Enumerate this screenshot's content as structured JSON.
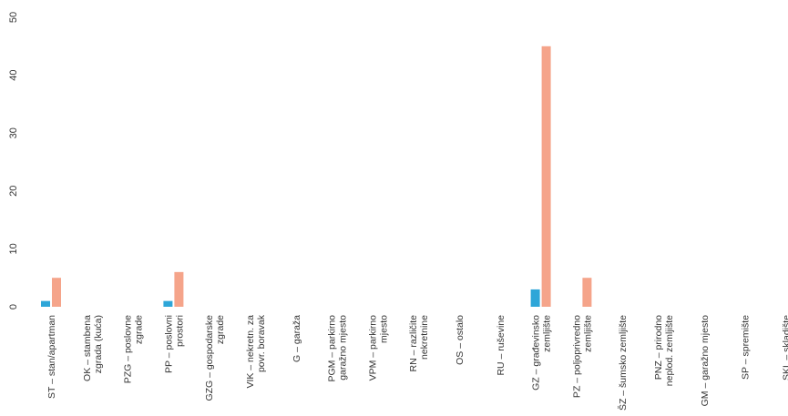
{
  "chart_data": {
    "type": "bar",
    "title": "",
    "xlabel": "",
    "ylabel": "",
    "ylim": [
      0,
      50
    ],
    "yticks": [
      0,
      10,
      20,
      30,
      40,
      50
    ],
    "grid": false,
    "categories": [
      [
        "ST – stan/apartman"
      ],
      [
        "OK – stambena",
        "zgrada (kuća)"
      ],
      [
        "PZG – poslovne",
        "zgrade"
      ],
      [
        "PP – poslovni",
        "prostori"
      ],
      [
        "GZG – gospodarske",
        "zgrade"
      ],
      [
        "VIK – nekretn. za",
        "povr. boravak"
      ],
      [
        "G – garaža"
      ],
      [
        "PGM – parkirno",
        "garažno mjesto"
      ],
      [
        "VPM – parkirno",
        "mjesto"
      ],
      [
        "RN – različite",
        "nekretnine"
      ],
      [
        "OS – ostalo"
      ],
      [
        "RU – ruševine"
      ],
      [
        "GZ – građevinsko",
        "zemljište"
      ],
      [
        "PZ – poljoprivredno",
        "zemljište"
      ],
      [
        "ŠZ – šumsko zemljište"
      ],
      [
        "PNZ – prirodno",
        "neplod. zemljište"
      ],
      [
        "GM – garažno mjesto"
      ],
      [
        "SP – spremište"
      ],
      [
        "SKL – skladište"
      ]
    ],
    "series": [
      {
        "color": "#2ea6d8",
        "values": [
          1,
          0,
          0,
          1,
          0,
          0,
          0,
          0,
          0,
          0,
          0,
          0,
          3,
          0,
          0,
          0,
          0,
          0,
          0
        ]
      },
      {
        "color": "#f5a48a",
        "values": [
          5,
          0,
          0,
          6,
          0,
          0,
          0,
          0,
          0,
          0,
          0,
          0,
          45,
          5,
          0,
          0,
          0,
          0,
          0
        ]
      }
    ]
  }
}
